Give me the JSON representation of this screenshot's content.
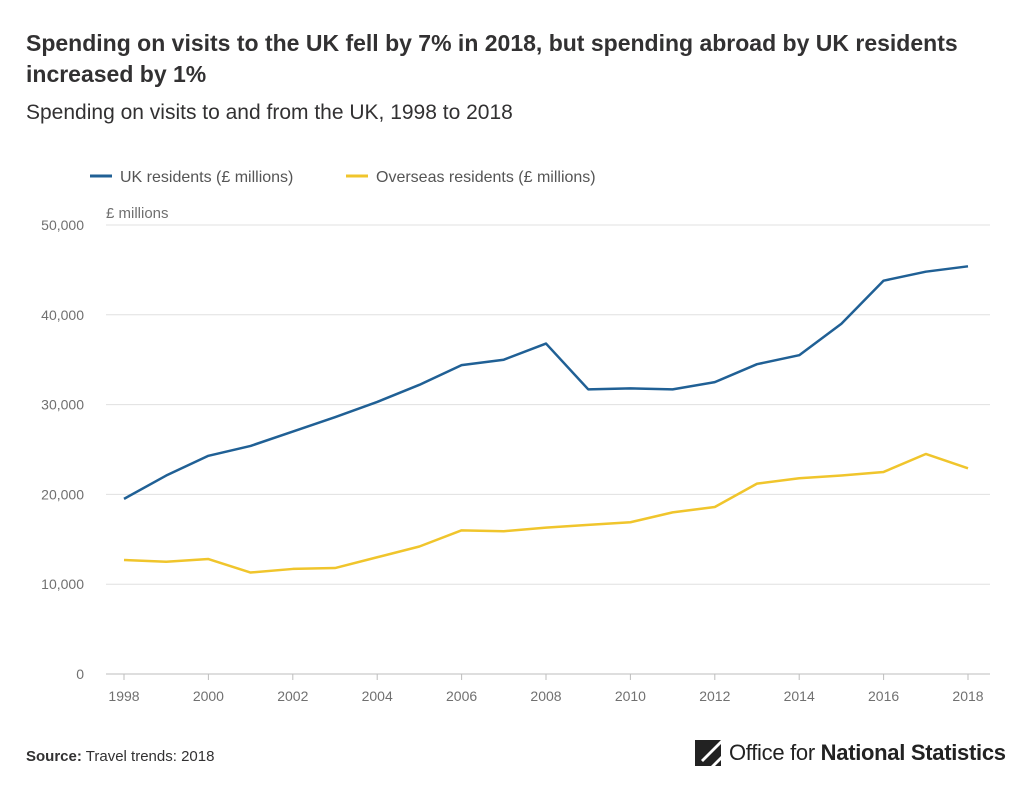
{
  "header": {
    "title": "Spending on visits to the UK fell by 7% in 2018, but spending abroad by UK residents increased by 1%",
    "subtitle": "Spending on visits to and from the UK, 1998 to 2018"
  },
  "footer": {
    "source_label": "Source:",
    "source_text": "Travel trends: 2018",
    "logo_text_light": "Office for",
    "logo_text_bold": "National Statistics"
  },
  "chart_data": {
    "type": "line",
    "title": "Spending on visits to and from the UK, 1998 to 2018",
    "ylabel": "£ millions",
    "xlabel": "",
    "x": [
      1998,
      1999,
      2000,
      2001,
      2002,
      2003,
      2004,
      2005,
      2006,
      2007,
      2008,
      2009,
      2010,
      2011,
      2012,
      2013,
      2014,
      2015,
      2016,
      2017,
      2018
    ],
    "xticks": [
      1998,
      2000,
      2002,
      2004,
      2006,
      2008,
      2010,
      2012,
      2014,
      2016,
      2018
    ],
    "xlim": [
      1998,
      2018
    ],
    "ylim": [
      0,
      50000
    ],
    "yticks": [
      0,
      10000,
      20000,
      30000,
      40000,
      50000
    ],
    "ytick_labels": [
      "0",
      "10,000",
      "20,000",
      "30,000",
      "40,000",
      "50,000"
    ],
    "grid": true,
    "legend_position": "top-left",
    "series": [
      {
        "name": "UK residents (£ millions)",
        "color": "#206095",
        "values": [
          19500,
          22100,
          24300,
          25400,
          27000,
          28600,
          30300,
          32200,
          34400,
          35000,
          36800,
          31700,
          31800,
          31700,
          32500,
          34500,
          35500,
          39000,
          43800,
          44800,
          45400
        ]
      },
      {
        "name": "Overseas residents (£ millions)",
        "color": "#F0C52C",
        "values": [
          12700,
          12500,
          12800,
          11300,
          11700,
          11800,
          13000,
          14200,
          16000,
          15900,
          16300,
          16600,
          16900,
          18000,
          18600,
          21200,
          21800,
          22100,
          22500,
          24500,
          22900
        ]
      }
    ]
  },
  "colors": {
    "uk_residents": "#206095",
    "overseas_residents": "#F0C52C",
    "grid": "#e0e0e0",
    "axis_text": "#707070"
  }
}
